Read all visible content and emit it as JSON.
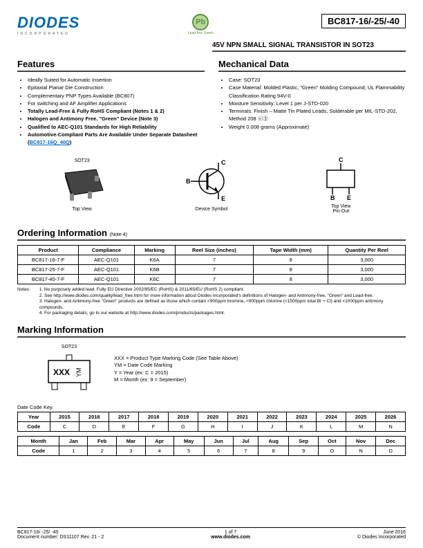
{
  "header": {
    "logo_main": "DIODES",
    "logo_sub": "INCORPORATED",
    "pb_symbol": "Pb",
    "pb_text": "Lead-free Green",
    "part_number": "BC817-16/-25/-40",
    "subtitle": "45V NPN SMALL SIGNAL TRANSISTOR IN SOT23"
  },
  "features": {
    "title": "Features",
    "items": [
      {
        "text": "Ideally Suited for Automatic Insertion",
        "bold": false
      },
      {
        "text": "Epitaxial Planar Die Construction",
        "bold": false
      },
      {
        "text": "Complementary PNP Types Available (BC807)",
        "bold": false
      },
      {
        "text": "For switching and AF Amplifier Applications",
        "bold": false
      },
      {
        "text": "Totally Lead-Free & Fully RoHS Compliant (Notes 1 & 2)",
        "bold": true
      },
      {
        "text": "Halogen and Antimony Free. \"Green\" Device (Note 3)",
        "bold": true
      },
      {
        "text": "Qualified to AEC-Q101 Standards for High Reliability",
        "bold": true
      },
      {
        "text": "Automotive-Compliant Parts Are Available Under Separate Datasheet (",
        "bold": true,
        "link": "BC817-16Q_40Q",
        "suffix": ")"
      }
    ]
  },
  "mechanical": {
    "title": "Mechanical Data",
    "items": [
      "Case: SOT23",
      "Case Material: Molded Plastic, \"Green\" Molding Compound; UL Flammability Classification Rating 94V-0",
      "Moisture Sensitivity: Level 1 per J-STD-020",
      "Terminals: Finish – Matte Tin Plated Leads, Solderable per MIL-STD-202, Method 208 ⓔ③",
      "Weight 0.008 grams (Approximate)"
    ]
  },
  "diagrams": {
    "sot23_label": "SOT23",
    "top_view": "Top View",
    "device_symbol": "Device Symbol",
    "pinout_top": "Top View",
    "pinout_sub": "Pin-Out",
    "pins": {
      "b": "B",
      "c": "C",
      "e": "E"
    }
  },
  "ordering": {
    "title": "Ordering Information",
    "note_suffix": "(Note 4)",
    "headers": [
      "Product",
      "Compliance",
      "Marking",
      "Reel Size (inches)",
      "Tape Width (mm)",
      "Quantity Per Reel"
    ],
    "rows": [
      [
        "BC817-16-7-F",
        "AEC-Q101",
        "K6A",
        "7",
        "8",
        "3,000"
      ],
      [
        "BC817-25-7-F",
        "AEC-Q101",
        "K6B",
        "7",
        "8",
        "3,000"
      ],
      [
        "BC817-40-7-F",
        "AEC-Q101",
        "K6C",
        "7",
        "8",
        "3,000"
      ]
    ],
    "notes_label": "Notes:",
    "notes": [
      "1. No purposely added lead. Fully EU Directive 2002/95/EC (RoHS) & 2011/65/EU (RoHS 2) compliant.",
      "2. See http://www.diodes.com/quality/lead_free.html for more information about Diodes Incorporated's definitions of Halogen- and Antimony-free, \"Green\" and Lead-free.",
      "3. Halogen- and Antimony-free \"Green\" products are defined as those which contain <900ppm bromine, <900ppm chlorine (<1500ppm total Br + Cl) and <1000ppm antimony compounds.",
      "4. For packaging details, go to our website at http://www.diodes.com/products/packages.html."
    ]
  },
  "marking": {
    "title": "Marking Information",
    "sot23_label": "SOT23",
    "xxx": "XXX",
    "ym": "YM",
    "desc": [
      "XXX = Product Type Marking Code (See Table Above)",
      "YM = Date Code Marking",
      "Y = Year (ex: C = 2015)",
      "M = Month (ex: 9 = September)"
    ],
    "datekey_label": "Date Code Key",
    "year_row": {
      "label": "Year",
      "cells": [
        "2015",
        "2016",
        "2017",
        "2018",
        "2019",
        "2020",
        "2021",
        "2022",
        "2023",
        "2024",
        "2025",
        "2026"
      ]
    },
    "year_code": {
      "label": "Code",
      "cells": [
        "C",
        "D",
        "E",
        "F",
        "G",
        "H",
        "I",
        "J",
        "K",
        "L",
        "M",
        "N"
      ]
    },
    "month_row": {
      "label": "Month",
      "cells": [
        "Jan",
        "Feb",
        "Mar",
        "Apr",
        "May",
        "Jun",
        "Jul",
        "Aug",
        "Sep",
        "Oct",
        "Nov",
        "Dec"
      ]
    },
    "month_code": {
      "label": "Code",
      "cells": [
        "1",
        "2",
        "3",
        "4",
        "5",
        "6",
        "7",
        "8",
        "9",
        "O",
        "N",
        "D"
      ]
    }
  },
  "footer": {
    "left1": "BC817-16/ -25/ -40",
    "left2": "Document number: DS11107  Rev. 21 - 2",
    "center1": "1 of 7",
    "center2": "www.diodes.com",
    "right1": "June 2016",
    "right2": "© Diodes Incorporated"
  }
}
